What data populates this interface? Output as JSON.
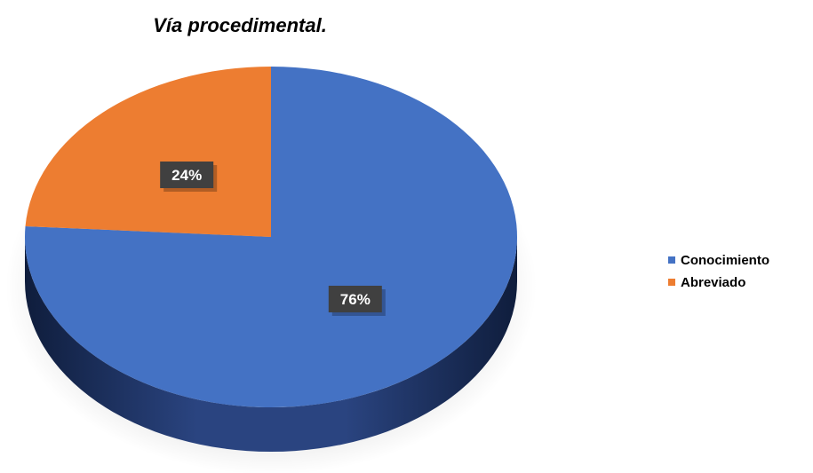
{
  "chart_data": {
    "type": "pie",
    "title": "Vía procedimental.",
    "categories": [
      "Conocimiento",
      "Abreviado"
    ],
    "values": [
      76,
      24
    ],
    "data_labels": [
      "76%",
      "24%"
    ],
    "colors": [
      "#4472C4",
      "#ED7D31"
    ],
    "legend_position": "right",
    "three_d": true
  }
}
